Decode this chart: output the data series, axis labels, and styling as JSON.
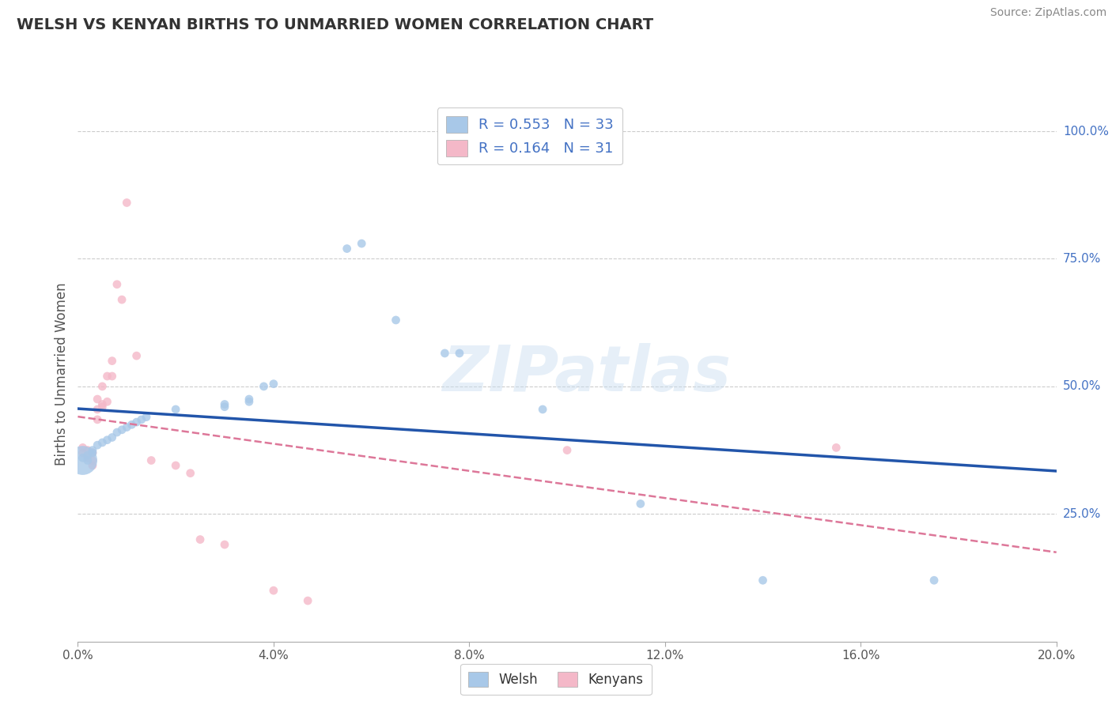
{
  "title": "WELSH VS KENYAN BIRTHS TO UNMARRIED WOMEN CORRELATION CHART",
  "source": "Source: ZipAtlas.com",
  "ylabel": "Births to Unmarried Women",
  "welsh_R": "0.553",
  "welsh_N": "33",
  "kenyan_R": "0.164",
  "kenyan_N": "31",
  "welsh_color": "#a8c8e8",
  "kenyan_color": "#f4b8c8",
  "welsh_line_color": "#2255aa",
  "kenyan_line_color": "#dd7799",
  "watermark": "ZIPatlas",
  "welsh_points": [
    [
      0.001,
      0.355
    ],
    [
      0.001,
      0.36
    ],
    [
      0.002,
      0.365
    ],
    [
      0.002,
      0.355
    ],
    [
      0.003,
      0.37
    ],
    [
      0.003,
      0.375
    ],
    [
      0.004,
      0.385
    ],
    [
      0.005,
      0.39
    ],
    [
      0.006,
      0.395
    ],
    [
      0.007,
      0.4
    ],
    [
      0.008,
      0.41
    ],
    [
      0.009,
      0.415
    ],
    [
      0.01,
      0.42
    ],
    [
      0.011,
      0.425
    ],
    [
      0.012,
      0.43
    ],
    [
      0.013,
      0.435
    ],
    [
      0.014,
      0.44
    ],
    [
      0.02,
      0.455
    ],
    [
      0.03,
      0.46
    ],
    [
      0.03,
      0.465
    ],
    [
      0.035,
      0.47
    ],
    [
      0.035,
      0.475
    ],
    [
      0.038,
      0.5
    ],
    [
      0.04,
      0.505
    ],
    [
      0.055,
      0.77
    ],
    [
      0.058,
      0.78
    ],
    [
      0.065,
      0.63
    ],
    [
      0.075,
      0.565
    ],
    [
      0.078,
      0.565
    ],
    [
      0.095,
      0.455
    ],
    [
      0.115,
      0.27
    ],
    [
      0.14,
      0.12
    ],
    [
      0.175,
      0.12
    ]
  ],
  "welsh_sizes": [
    700,
    60,
    60,
    60,
    60,
    60,
    60,
    60,
    60,
    60,
    60,
    60,
    60,
    60,
    60,
    60,
    60,
    60,
    60,
    60,
    60,
    60,
    60,
    60,
    60,
    60,
    60,
    60,
    60,
    60,
    60,
    60,
    60
  ],
  "kenyan_points": [
    [
      0.001,
      0.38
    ],
    [
      0.001,
      0.37
    ],
    [
      0.002,
      0.375
    ],
    [
      0.002,
      0.365
    ],
    [
      0.002,
      0.36
    ],
    [
      0.003,
      0.37
    ],
    [
      0.003,
      0.355
    ],
    [
      0.003,
      0.345
    ],
    [
      0.004,
      0.475
    ],
    [
      0.004,
      0.455
    ],
    [
      0.004,
      0.435
    ],
    [
      0.005,
      0.465
    ],
    [
      0.005,
      0.46
    ],
    [
      0.005,
      0.5
    ],
    [
      0.006,
      0.47
    ],
    [
      0.006,
      0.52
    ],
    [
      0.007,
      0.52
    ],
    [
      0.007,
      0.55
    ],
    [
      0.008,
      0.7
    ],
    [
      0.009,
      0.67
    ],
    [
      0.01,
      0.86
    ],
    [
      0.012,
      0.56
    ],
    [
      0.015,
      0.355
    ],
    [
      0.02,
      0.345
    ],
    [
      0.023,
      0.33
    ],
    [
      0.025,
      0.2
    ],
    [
      0.03,
      0.19
    ],
    [
      0.04,
      0.1
    ],
    [
      0.047,
      0.08
    ],
    [
      0.1,
      0.375
    ],
    [
      0.155,
      0.38
    ]
  ],
  "kenyan_sizes": [
    60,
    60,
    60,
    60,
    60,
    60,
    60,
    60,
    60,
    60,
    60,
    60,
    60,
    60,
    60,
    60,
    60,
    60,
    60,
    60,
    60,
    60,
    60,
    60,
    60,
    60,
    60,
    60,
    60,
    60,
    60
  ],
  "xlim": [
    0.0,
    0.2
  ],
  "ylim": [
    0.0,
    1.05
  ],
  "xticks": [
    0.0,
    0.04,
    0.08,
    0.12,
    0.16,
    0.2
  ],
  "ytick_positions": [
    0.25,
    0.5,
    0.75,
    1.0
  ],
  "ytick_labels": [
    "25.0%",
    "50.0%",
    "75.0%",
    "100.0%"
  ],
  "grid_color": "#cccccc",
  "background_color": "#ffffff",
  "title_color": "#333333",
  "label_color": "#555555",
  "right_tick_color": "#4472c4",
  "source_color": "#888888"
}
